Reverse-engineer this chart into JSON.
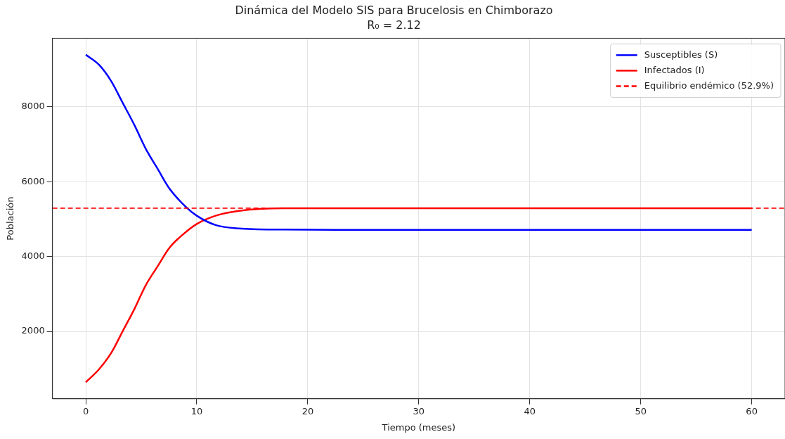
{
  "chart_data": {
    "type": "line",
    "title": "Dinámica del Modelo SIS para Brucelosis en Chimborazo",
    "subtitle": "R₀ = 2.12",
    "xlabel": "Tiempo (meses)",
    "ylabel": "Población",
    "x": [
      0,
      1.2,
      2.3,
      3.3,
      4.4,
      5.4,
      6.5,
      7.5,
      9,
      10,
      11.7,
      13.8,
      17.8,
      25,
      35,
      45,
      60
    ],
    "series": [
      {
        "name": "Susceptibles (S)",
        "color": "#0000ff",
        "values": [
          9390,
          9120,
          8680,
          8120,
          7500,
          6880,
          6330,
          5830,
          5330,
          5090,
          4840,
          4750,
          4720,
          4710,
          4710,
          4710,
          4710
        ]
      },
      {
        "name": "Infectados (I)",
        "color": "#ff0000",
        "values": [
          640,
          990,
          1430,
          1990,
          2610,
          3230,
          3750,
          4220,
          4650,
          4870,
          5090,
          5220,
          5290,
          5290,
          5290,
          5290,
          5290
        ]
      }
    ],
    "ref_lines": [
      {
        "axis": "y",
        "value": 5290,
        "label": "Equilibrio endémico (52.9%)",
        "color": "#ff0000",
        "line_style": "dashed"
      }
    ],
    "xlim": [
      -3,
      63
    ],
    "xticks": [
      0,
      10,
      20,
      30,
      40,
      50,
      60
    ],
    "ylim": [
      200,
      9830
    ],
    "yticks": [
      2000,
      4000,
      6000,
      8000
    ],
    "grid": true,
    "legend": "top right",
    "marker": "none",
    "line_style": "solid"
  }
}
